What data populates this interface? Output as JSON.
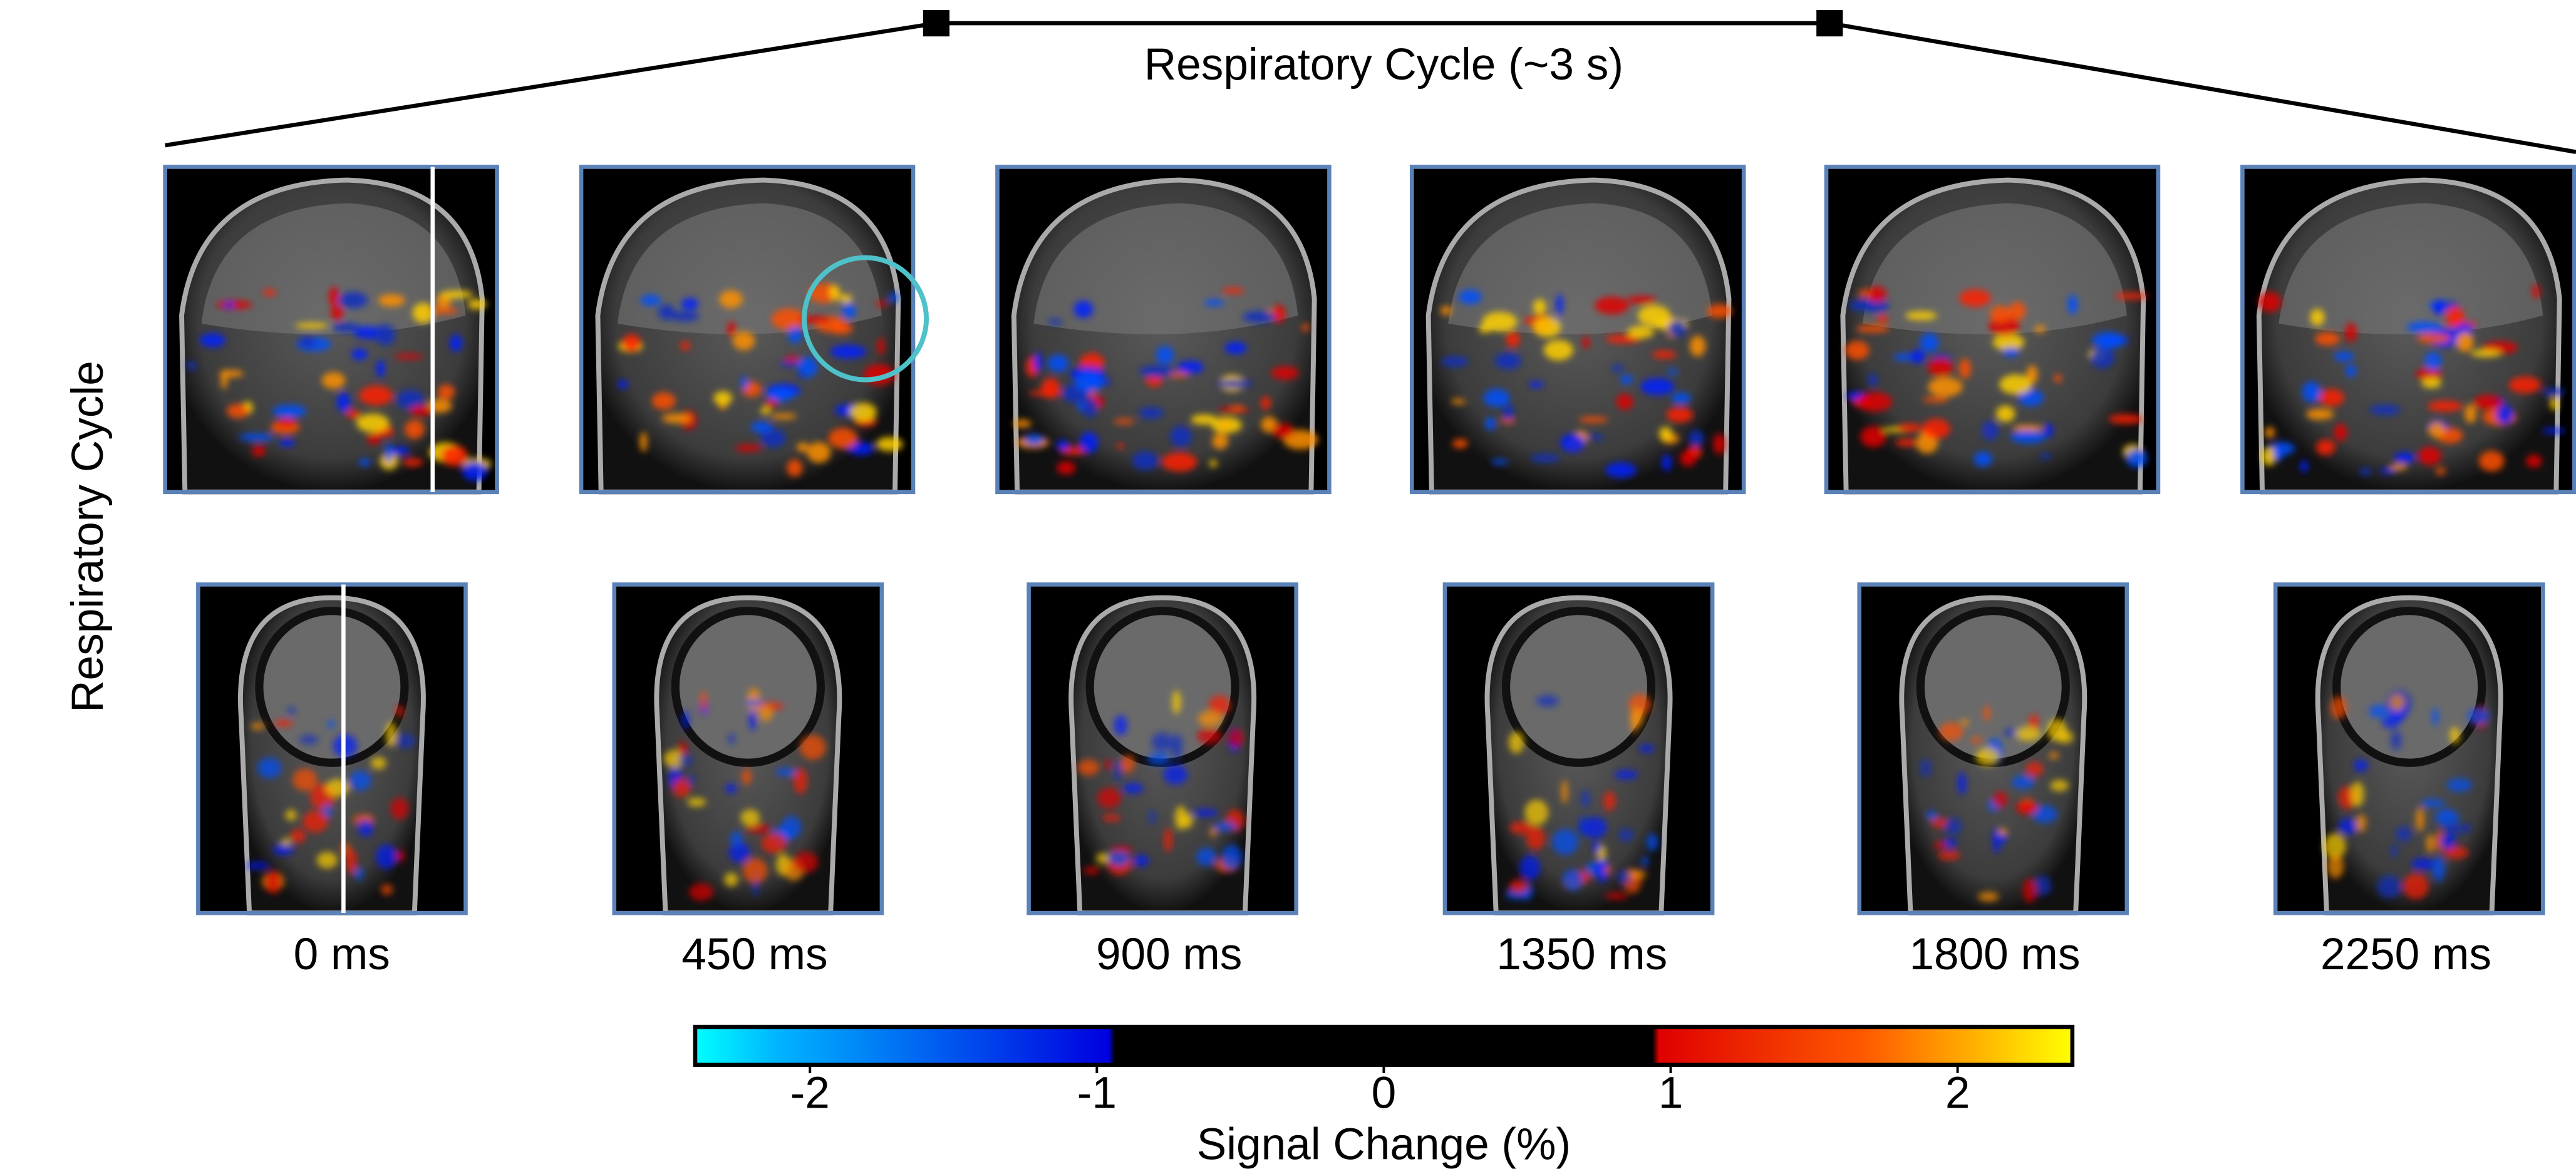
{
  "header": {
    "title": "Respiratory Cycle (~3 s)"
  },
  "side_label": "Respiratory Cycle",
  "frames": [
    "0 ms",
    "450 ms",
    "900 ms",
    "1350 ms",
    "1800 ms",
    "2250 ms"
  ],
  "colorbar": {
    "label": "Signal Change (%)",
    "lim": [
      -2.4,
      2.4
    ],
    "ticks": [
      -2,
      -1,
      0,
      1,
      2
    ]
  }
}
